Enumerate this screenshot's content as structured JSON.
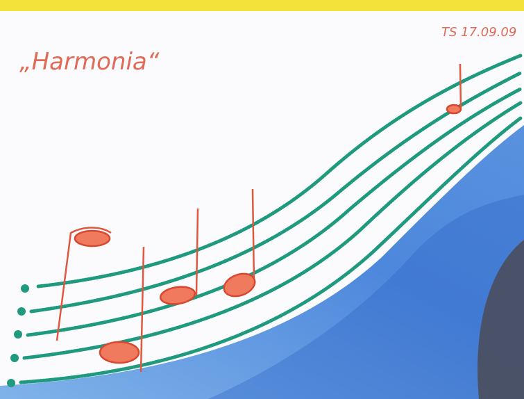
{
  "title": "„Harmonia“",
  "signature": "TS 17.09.09"
}
